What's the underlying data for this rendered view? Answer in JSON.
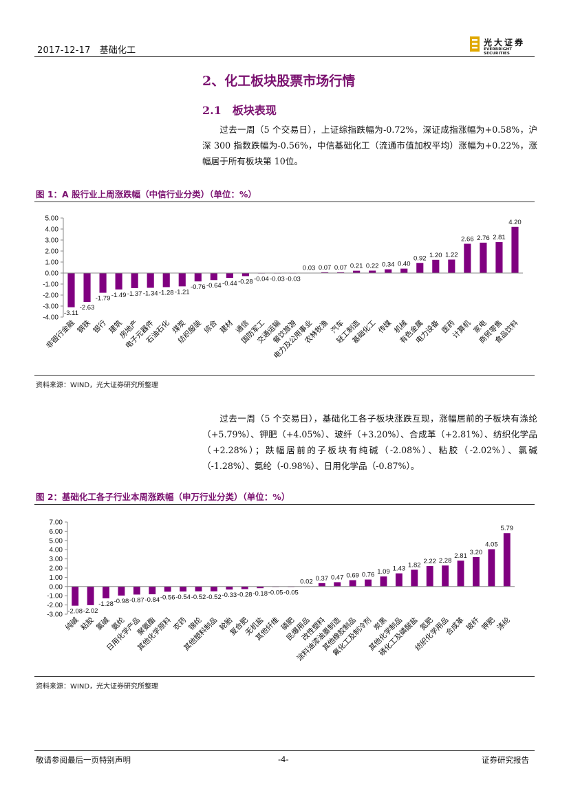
{
  "header": {
    "date": "2017-12-17",
    "sector": "基础化工",
    "logo_cn": "光大证券",
    "logo_en": "EVERBRIGHT SECURITIES"
  },
  "section": {
    "title": "2、化工板块股票市场行情",
    "subtitle": "2.1　板块表现"
  },
  "paragraph1": "过去一周（5 个交易日），上证综指跌幅为-0.72%，深证成指涨幅为+0.58%，沪深 300 指数跌幅为-0.56%，中信基础化工（流通市值加权平均）涨幅为+0.22%，涨幅居于所有板块第 10位。",
  "paragraph2": "过去一周（5 个交易日），基础化工各子板块涨跌互现，涨幅居前的子板块有涤纶（+5.79%）、钾肥（+4.05%）、玻纤（+3.20%）、合成革（+2.81%）、纺织化学品（+2.28%）；跌幅居前的子板块有纯碱（-2.08%）、粘胶（-2.02%）、氯碱（-1.28%）、氨纶（-0.98%）、日用化学品（-0.87%）。",
  "figure1": {
    "title": "图 1：A 股行业上周涨跌幅（中信行业分类）（单位：%）",
    "source": "资料来源：WIND，光大证券研究所整理"
  },
  "figure2": {
    "title": "图 2：基础化工各子行业本周涨跌幅（申万行业分类）（单位：%）",
    "source": "资料来源：WIND，光大证券研究所整理"
  },
  "chart_data": [
    {
      "type": "bar",
      "color": "#800080",
      "ylim": [
        -4,
        5
      ],
      "yticks": [
        "5.00",
        "4.00",
        "3.00",
        "2.00",
        "1.00",
        "0.00",
        "-1.00",
        "-2.00",
        "-3.00",
        "-4.00"
      ],
      "categories": [
        "非银行金融",
        "钢铁",
        "银行",
        "建筑",
        "房地产",
        "电子元器件",
        "石油石化",
        "煤炭",
        "纺织服装",
        "综合",
        "建材",
        "通信",
        "国防军工",
        "交通运输",
        "餐饮旅游",
        "电力及公用事业",
        "农林牧渔",
        "汽车",
        "轻工制造",
        "基础化工",
        "传媒",
        "机械",
        "有色金属",
        "电力设备",
        "医药",
        "计算机",
        "家电",
        "商贸零售",
        "食品饮料"
      ],
      "values": [
        -3.11,
        -2.63,
        -1.79,
        -1.49,
        -1.37,
        -1.34,
        -1.28,
        -1.21,
        -0.76,
        -0.64,
        -0.44,
        -0.28,
        -0.04,
        -0.03,
        -0.03,
        0.03,
        0.07,
        0.07,
        0.21,
        0.22,
        0.34,
        0.4,
        0.92,
        1.2,
        1.22,
        2.66,
        2.76,
        2.81,
        4.2
      ],
      "labels": [
        "-3.11",
        "-2.63",
        "-1.79",
        "-1.49",
        "-1.37",
        "-1.34",
        "-1.28",
        "-1.21",
        "-0.76",
        "-0.64",
        "-0.44",
        "-0.28",
        "-0.04",
        "-0.03",
        "-0.03",
        "0.03",
        "0.07",
        "0.07",
        "0.21",
        "0.22",
        "0.34",
        "0.40",
        "0.92",
        "1.20",
        "1.22",
        "2.66",
        "2.76",
        "2.81",
        "4.20"
      ]
    },
    {
      "type": "bar",
      "color": "#800080",
      "ylim": [
        -3,
        7
      ],
      "yticks": [
        "7.00",
        "6.00",
        "5.00",
        "4.00",
        "3.00",
        "2.00",
        "1.00",
        "0.00",
        "-1.00",
        "-2.00",
        "-3.00"
      ],
      "categories": [
        "纯碱",
        "粘胶",
        "氯碱",
        "氨纶",
        "日用化学产品",
        "聚氨酯",
        "其他化学原料",
        "农药",
        "锦纶",
        "其他塑料制品",
        "轮胎",
        "复合肥",
        "无机盐",
        "其他纤维",
        "磷肥",
        "民爆用品",
        "改性塑料",
        "涂料油漆油墨制造",
        "其他橡胶制品",
        "氟化工及制冷剂",
        "炭黑",
        "其他化学制品",
        "磷化工及磷酸盐",
        "氮肥",
        "纺织化学用品",
        "合成革",
        "玻纤",
        "钾肥",
        "涤纶"
      ],
      "values": [
        -2.08,
        -2.02,
        -1.28,
        -0.98,
        -0.87,
        -0.84,
        -0.56,
        -0.54,
        -0.52,
        -0.52,
        -0.33,
        -0.28,
        -0.18,
        -0.05,
        -0.05,
        0.02,
        0.37,
        0.47,
        0.69,
        0.76,
        1.09,
        1.43,
        1.82,
        2.22,
        2.28,
        2.81,
        3.2,
        4.05,
        5.79
      ],
      "labels": [
        "-2.08",
        "-2.02",
        "-1.28",
        "-0.98",
        "-0.87",
        "-0.84",
        "-0.56",
        "-0.54",
        "-0.52",
        "-0.52",
        "-0.33",
        "-0.28",
        "-0.18",
        "-0.05",
        "-0.05",
        "0.02",
        "0.37",
        "0.47",
        "0.69",
        "0.76",
        "1.09",
        "1.43",
        "1.82",
        "2.22",
        "2.28",
        "2.81",
        "3.20",
        "4.05",
        "5.79"
      ]
    }
  ],
  "footer": {
    "left": "敬请参阅最后一页特别声明",
    "page": "-4-",
    "right": "证券研究报告"
  }
}
